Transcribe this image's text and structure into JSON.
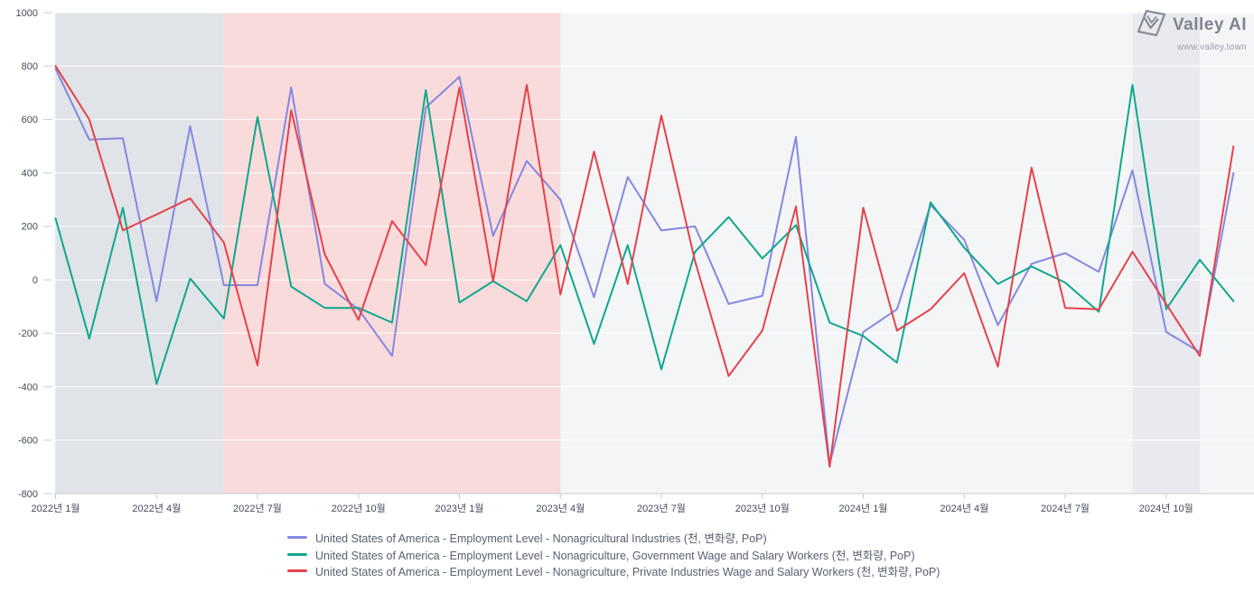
{
  "logo": {
    "title": "Valley AI",
    "url": "www.valley.town"
  },
  "theme": {
    "plot_bg": "#f4f5f7",
    "gridline": "#ffffff",
    "axis_line": "#c8ccd3",
    "tick_label_color": "#424b59",
    "legend_text_color": "#57606e",
    "logo_color": "#7f8490"
  },
  "chart_data": {
    "type": "line",
    "title": "",
    "xlabel": "",
    "ylabel": "",
    "ylim": [
      -800,
      1000
    ],
    "y_ticks": [
      1000,
      800,
      600,
      400,
      200,
      0,
      -200,
      -400,
      -600,
      -800
    ],
    "grid": true,
    "legend_position": "bottom",
    "x_tick_labels": [
      "2022년 1월",
      "2022년 4월",
      "2022년 7월",
      "2022년 10월",
      "2023년 1월",
      "2023년 4월",
      "2023년 7월",
      "2023년 10월",
      "2024년 1월",
      "2024년 4월",
      "2024년 7월",
      "2024년 10월"
    ],
    "x_tick_month_indices": [
      0,
      3,
      6,
      9,
      12,
      15,
      18,
      21,
      24,
      27,
      30,
      33
    ],
    "months": [
      "2022-01",
      "2022-02",
      "2022-03",
      "2022-04",
      "2022-05",
      "2022-06",
      "2022-07",
      "2022-08",
      "2022-09",
      "2022-10",
      "2022-11",
      "2022-12",
      "2023-01",
      "2023-02",
      "2023-03",
      "2023-04",
      "2023-05",
      "2023-06",
      "2023-07",
      "2023-08",
      "2023-09",
      "2023-10",
      "2023-11",
      "2023-12",
      "2024-01",
      "2024-02",
      "2024-03",
      "2024-04",
      "2024-05",
      "2024-06",
      "2024-07",
      "2024-08",
      "2024-09",
      "2024-10",
      "2024-11",
      "2024-12"
    ],
    "background_bands": [
      {
        "name": "shaded-band-gray-1",
        "from_index": 0,
        "to_index": 5,
        "color": "#e0e3e8"
      },
      {
        "name": "shaded-band-pink",
        "from_index": 5,
        "to_index": 15,
        "color": "#f9dbdb"
      },
      {
        "name": "shaded-band-gray-2",
        "from_index": 32,
        "to_index": 34,
        "color": "#e8eaef"
      }
    ],
    "series": [
      {
        "name": "United States of America - Employment Level - Nonagricultural Industries (천, 변화량, PoP)",
        "color": "#8588e0",
        "values": [
          790,
          525,
          530,
          -80,
          575,
          -20,
          -20,
          720,
          -15,
          -110,
          -285,
          645,
          760,
          165,
          445,
          300,
          -65,
          385,
          185,
          200,
          -90,
          -60,
          535,
          -690,
          -195,
          -110,
          280,
          150,
          -170,
          60,
          100,
          30,
          410,
          -195,
          -270,
          400
        ]
      },
      {
        "name": "United States of America - Employment Level - Nonagriculture, Government Wage and Salary Workers (천, 변화량, PoP)",
        "color": "#0ea88d",
        "values": [
          230,
          -220,
          270,
          -390,
          5,
          -145,
          610,
          -25,
          -105,
          -105,
          -160,
          710,
          -85,
          -5,
          -80,
          130,
          -240,
          130,
          -335,
          105,
          235,
          80,
          205,
          -160,
          -210,
          -310,
          290,
          120,
          -15,
          50,
          -10,
          -120,
          730,
          -110,
          75,
          -80
        ]
      },
      {
        "name": "United States of America - Employment Level - Nonagriculture, Private Industries Wage and Salary Workers (천, 변화량, PoP)",
        "color": "#e5424a",
        "values": [
          800,
          600,
          185,
          245,
          305,
          140,
          -320,
          635,
          95,
          -150,
          220,
          55,
          720,
          -5,
          730,
          -55,
          480,
          -15,
          615,
          70,
          -360,
          -190,
          275,
          -700,
          270,
          -190,
          -110,
          25,
          -325,
          420,
          -105,
          -110,
          105,
          -90,
          -285,
          500
        ]
      }
    ]
  }
}
